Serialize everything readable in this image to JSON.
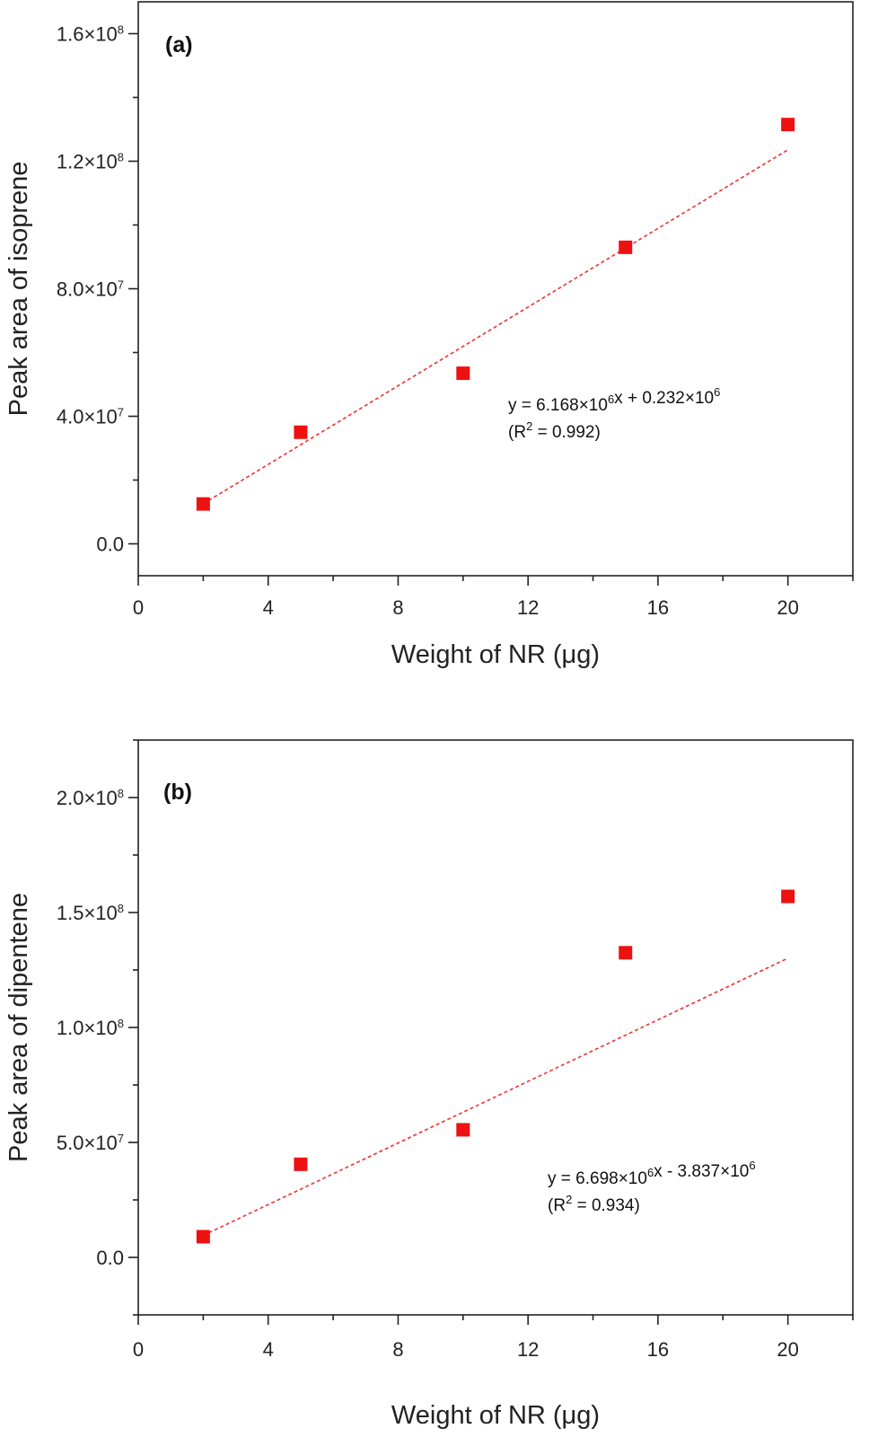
{
  "chart_data": [
    {
      "type": "scatter",
      "panel_label": "(a)",
      "xlabel": "Weight of NR (μg)",
      "ylabel": "Peak area of isoprene",
      "xlim": [
        0,
        22
      ],
      "ylim": [
        -10000000,
        170000000
      ],
      "x_ticks": [
        0,
        4,
        8,
        12,
        16,
        20
      ],
      "y_ticks": [
        0,
        40000000,
        80000000,
        120000000,
        160000000
      ],
      "y_tick_labels": [
        {
          "mantissa": "0.0",
          "exp": ""
        },
        {
          "mantissa": "4.0×10",
          "exp": "7"
        },
        {
          "mantissa": "8.0×10",
          "exp": "7"
        },
        {
          "mantissa": "1.2×10",
          "exp": "8"
        },
        {
          "mantissa": "1.6×10",
          "exp": "8"
        }
      ],
      "grid": false,
      "marker_color": "#ee1111",
      "fit_color": "#ee3333",
      "series": [
        {
          "x": [
            2,
            5,
            10,
            15,
            20
          ],
          "y": [
            12500000,
            35000000,
            53500000,
            93000000,
            131500000
          ]
        }
      ],
      "fit": {
        "slope": 6168000,
        "intercept": 232000,
        "x_range": [
          2,
          20
        ]
      },
      "equation": {
        "parts": [
          "y = 6.168×10",
          "6",
          "x + 0.232×10",
          "6"
        ],
        "r2_parts": [
          "(R",
          "2",
          " = 0.992)"
        ]
      }
    },
    {
      "type": "scatter",
      "panel_label": "(b)",
      "xlabel": "Weight of NR (μg)",
      "ylabel": "Peak area of dipentene",
      "xlim": [
        0,
        22
      ],
      "ylim": [
        -25000000,
        225000000
      ],
      "x_ticks": [
        0,
        4,
        8,
        12,
        16,
        20
      ],
      "y_ticks": [
        0,
        50000000,
        100000000,
        150000000,
        200000000
      ],
      "y_tick_labels": [
        {
          "mantissa": "0.0",
          "exp": ""
        },
        {
          "mantissa": "5.0×10",
          "exp": "7"
        },
        {
          "mantissa": "1.0×10",
          "exp": "8"
        },
        {
          "mantissa": "1.5×10",
          "exp": "8"
        },
        {
          "mantissa": "2.0×10",
          "exp": "8"
        }
      ],
      "grid": false,
      "marker_color": "#ee1111",
      "fit_color": "#ee3333",
      "series": [
        {
          "x": [
            2,
            5,
            10,
            15,
            20
          ],
          "y": [
            9000000,
            40500000,
            55500000,
            132500000,
            157000000
          ]
        }
      ],
      "fit": {
        "slope": 6698000,
        "intercept": -3837000,
        "x_range": [
          2,
          20
        ]
      },
      "equation": {
        "parts": [
          "y = 6.698×10",
          "6",
          "x - 3.837×10",
          "6"
        ],
        "r2_parts": [
          "(R",
          "2",
          " = 0.934)"
        ]
      }
    }
  ]
}
